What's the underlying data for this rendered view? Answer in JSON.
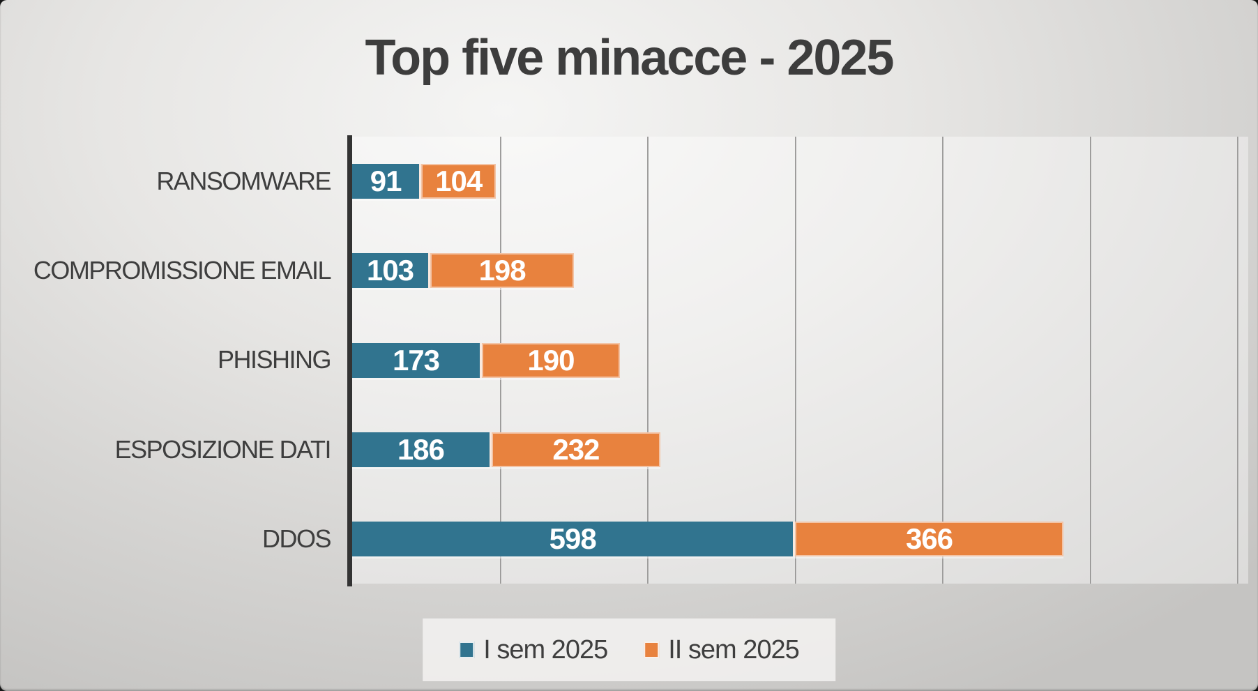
{
  "chart_data": {
    "type": "bar",
    "orientation": "horizontal",
    "stacked": true,
    "title": "Top five minacce - 2025",
    "categories": [
      "RANSOMWARE",
      "COMPROMISSIONE EMAIL",
      "PHISHING",
      "ESPOSIZIONE DATI",
      "DDOS"
    ],
    "series": [
      {
        "name": "I sem 2025",
        "color": "#31748f",
        "values": [
          91,
          103,
          173,
          186,
          598
        ]
      },
      {
        "name": "II sem 2025",
        "color": "#e8823e",
        "values": [
          104,
          198,
          190,
          232,
          366
        ]
      }
    ],
    "totals": [
      195,
      301,
      363,
      418,
      964
    ],
    "xlabel": "",
    "ylabel": "",
    "xlim": [
      0,
      1215
    ],
    "gridlines": [
      200,
      400,
      600,
      800,
      1000,
      1200
    ],
    "grid": true,
    "legend_position": "bottom",
    "value_labels": "inside center, white bold"
  },
  "colors": {
    "series1": "#31748f",
    "series2": "#e8823e",
    "title_text": "#3d3d3d",
    "label_text": "#3e3e3e",
    "axis_line": "#333333",
    "gridline": "#9e9d9c",
    "background_light": "#f5f5f4",
    "background_dark": "#c5c4c2",
    "legend_box": "#f3f2f1"
  }
}
